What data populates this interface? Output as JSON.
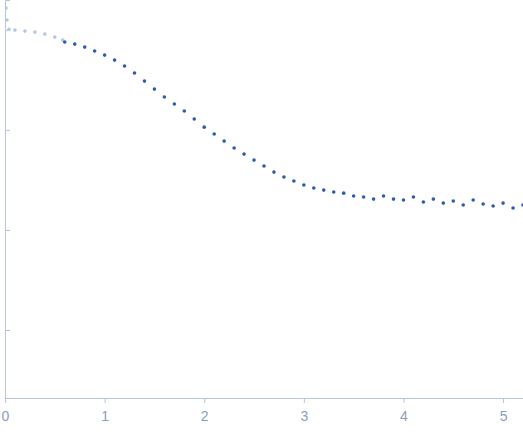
{
  "chart_data": {
    "type": "scatter",
    "log": "y",
    "tick_labels": "x",
    "grid": false,
    "xlim": [
      0,
      5.2
    ],
    "xticks": [
      0,
      1,
      2,
      3,
      4,
      5
    ],
    "ylim": [
      0.000209,
      2
    ],
    "yticks": [
      0.001,
      0.01,
      0.1,
      1
    ],
    "series": [
      {
        "color": "#b4c6e4",
        "marker": "circle",
        "x": [
          0.01,
          0.02,
          0.04,
          0.1,
          0.2,
          0.3,
          0.4,
          0.5,
          0.58
        ],
        "values": [
          1.66,
          1.26,
          1.02,
          1.0,
          0.977,
          0.955,
          0.912,
          0.851,
          0.794
        ]
      },
      {
        "color": "#2a5db0",
        "marker": "circle",
        "x": [
          0.6,
          0.7,
          0.8,
          0.9,
          1.0,
          1.1,
          1.2,
          1.3,
          1.4,
          1.5,
          1.6,
          1.7,
          1.8,
          1.9,
          2.0,
          2.1,
          2.2,
          2.3,
          2.4,
          2.5,
          2.6,
          2.7,
          2.8,
          2.9,
          3.0,
          3.1,
          3.2,
          3.3,
          3.4,
          3.5,
          3.6,
          3.7,
          3.8,
          3.9,
          4.0,
          4.1,
          4.2,
          4.3,
          4.4,
          4.5,
          4.6,
          4.7,
          4.8,
          4.9,
          5.0,
          5.1,
          5.2
        ],
        "values": [
          0.759,
          0.724,
          0.676,
          0.617,
          0.562,
          0.501,
          0.437,
          0.372,
          0.309,
          0.257,
          0.214,
          0.182,
          0.155,
          0.129,
          0.107,
          0.0912,
          0.0776,
          0.0661,
          0.0575,
          0.0501,
          0.0437,
          0.038,
          0.0339,
          0.0309,
          0.0282,
          0.0263,
          0.0251,
          0.024,
          0.0234,
          0.0219,
          0.0214,
          0.0204,
          0.0219,
          0.0204,
          0.02,
          0.0214,
          0.0191,
          0.0204,
          0.0186,
          0.0195,
          0.0178,
          0.02,
          0.0182,
          0.0174,
          0.0186,
          0.0166,
          0.0178
        ]
      }
    ]
  }
}
